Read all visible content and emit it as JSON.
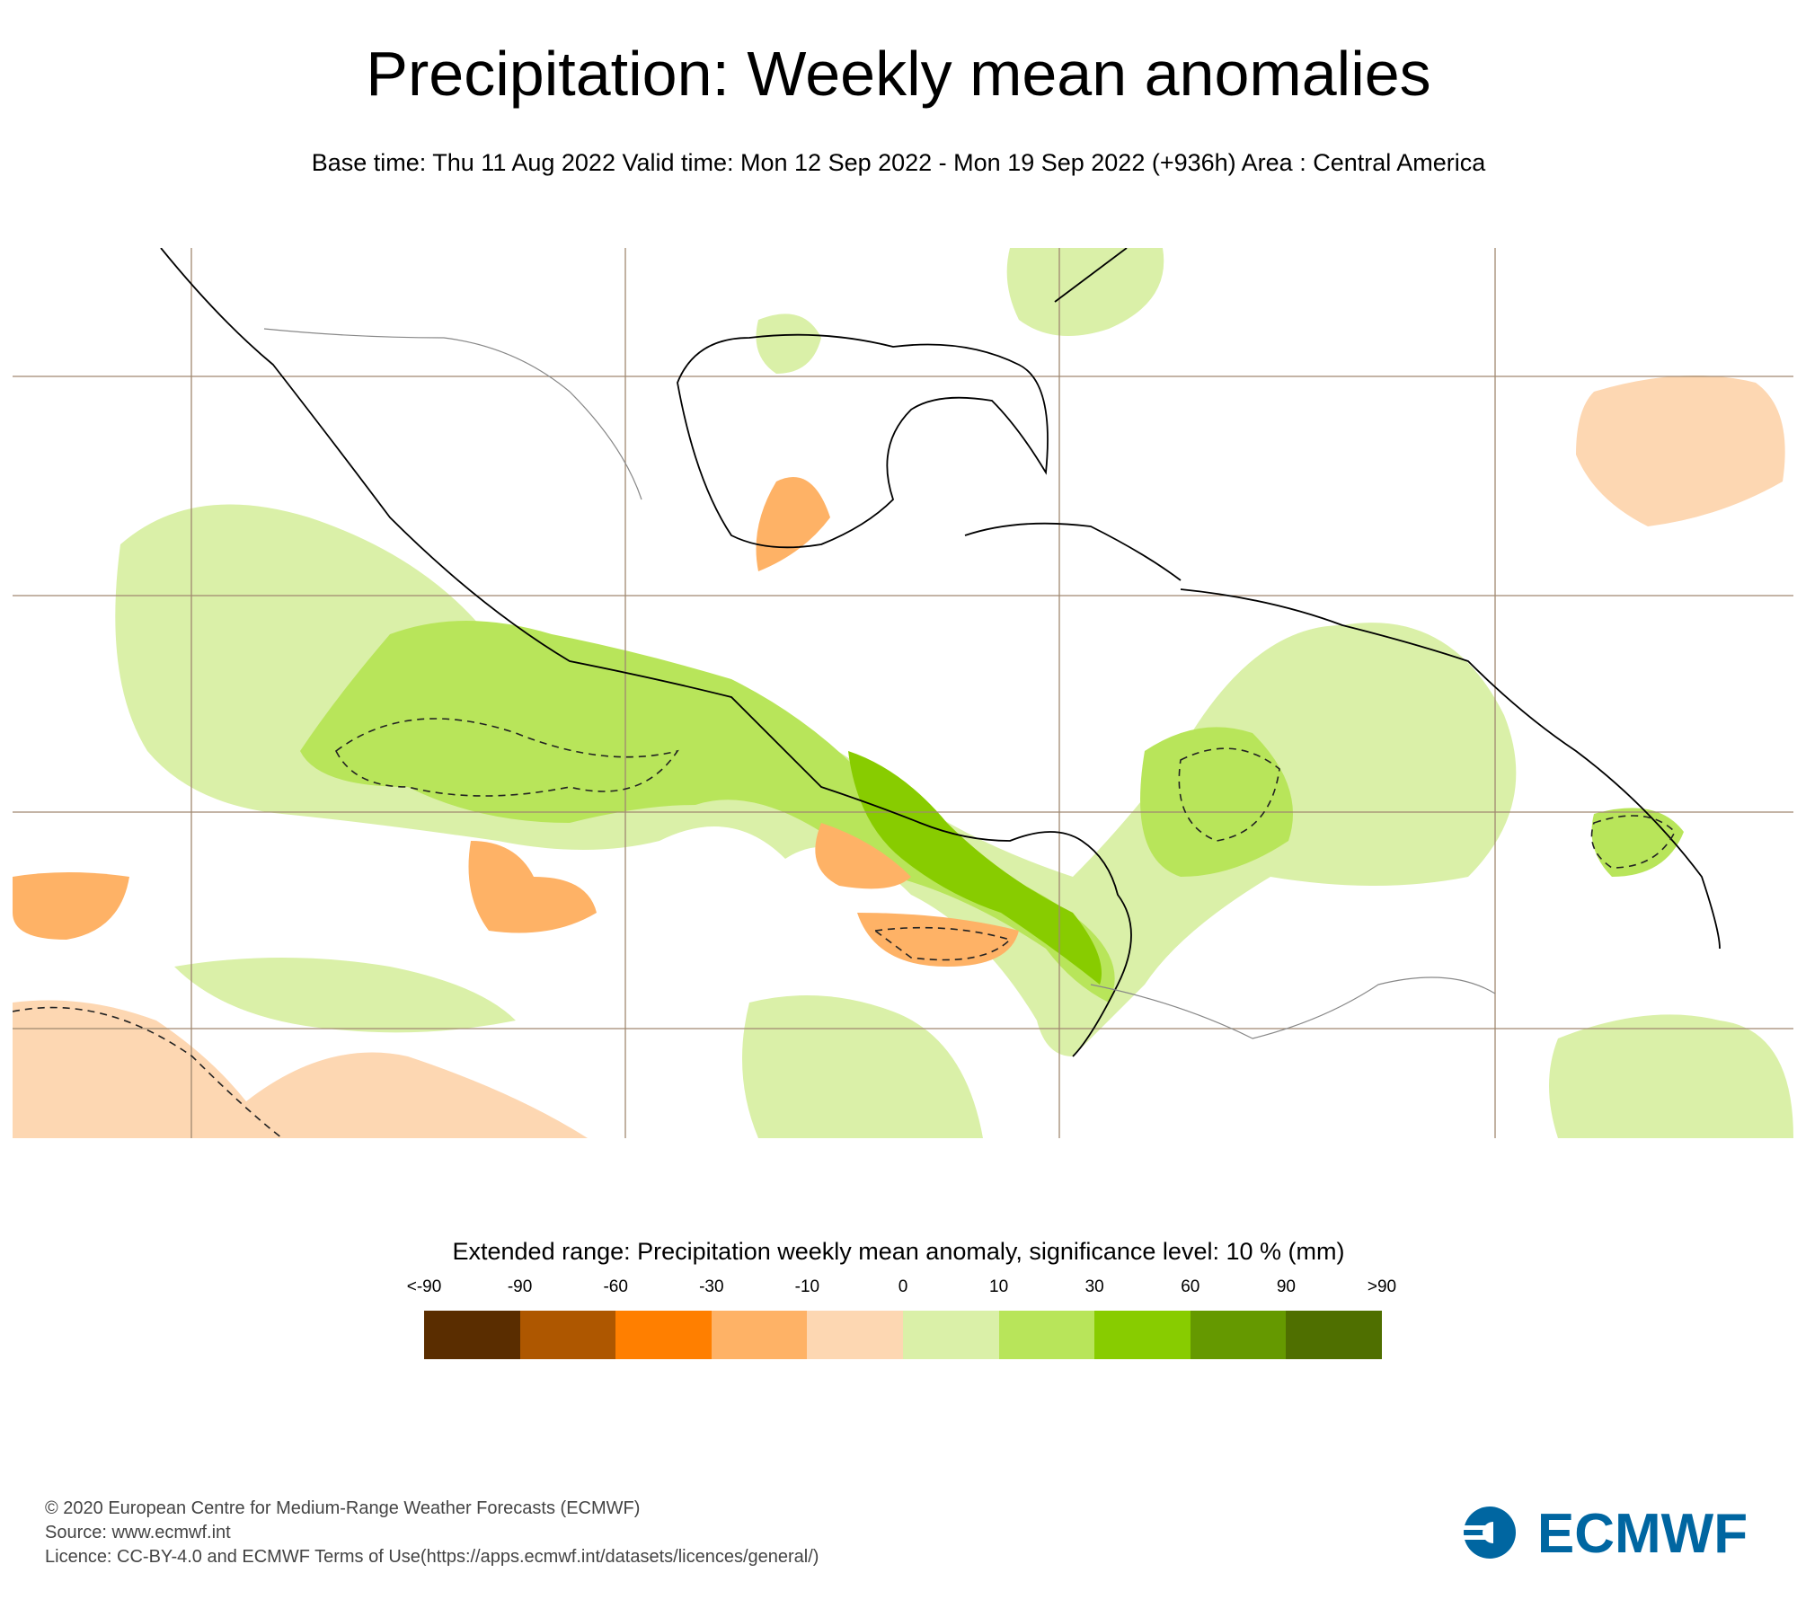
{
  "title": "Precipitation: Weekly mean anomalies",
  "subtitle": "Base time: Thu 11 Aug 2022 Valid time: Mon 12 Sep 2022 - Mon 19 Sep 2022 (+936h) Area : Central America",
  "chart_data": {
    "type": "heatmap",
    "title": "Precipitation: Weekly mean anomalies",
    "area": "Central America",
    "legend": {
      "title": "Extended range: Precipitation weekly mean anomaly, significance level: 10 % (mm)",
      "tick_labels": [
        "<-90",
        "-90",
        "-60",
        "-30",
        "-10",
        "0",
        "10",
        "30",
        "60",
        "90",
        ">90"
      ],
      "bins": [
        {
          "range": "<-90 to -90",
          "color": "#5a2d00"
        },
        {
          "range": "-90 to -60",
          "color": "#ae5700"
        },
        {
          "range": "-60 to -30",
          "color": "#ff7f00"
        },
        {
          "range": "-30 to -10",
          "color": "#feb266"
        },
        {
          "range": "-10 to 0",
          "color": "#fdd7b2"
        },
        {
          "range": "0 to 10",
          "color": "#daf0a8"
        },
        {
          "range": "10 to 30",
          "color": "#b8e55a"
        },
        {
          "range": "30 to 60",
          "color": "#88cc00"
        },
        {
          "range": "60 to 90",
          "color": "#659900"
        },
        {
          "range": "90 to >90",
          "color": "#4f6f00"
        }
      ]
    }
  },
  "footer": {
    "copyright": "© 2020 European Centre for Medium-Range Weather Forecasts (ECMWF)",
    "source": "Source: www.ecmwf.int",
    "licence": "Licence: CC-BY-4.0 and ECMWF Terms of Use(https://apps.ecmwf.int/datasets/licences/general/)",
    "logo_text": "ECMWF",
    "logo_color": "#0066a1"
  }
}
